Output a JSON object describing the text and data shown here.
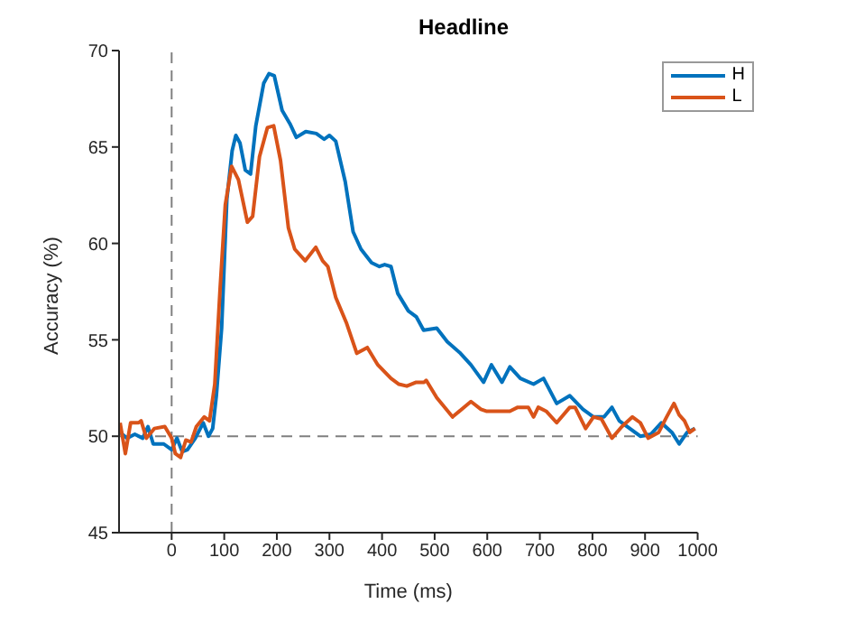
{
  "chart_data": {
    "type": "line",
    "title": "Headline",
    "xlabel": "Time (ms)",
    "ylabel": "Accuracy (%)",
    "xlim": [
      -100,
      1000
    ],
    "xticks": [
      0,
      100,
      200,
      300,
      400,
      500,
      600,
      700,
      800,
      900,
      1000
    ],
    "ylim": [
      45,
      70
    ],
    "yticks": [
      45,
      50,
      55,
      60,
      65,
      70
    ],
    "grid": false,
    "legend": "top right",
    "line_style": "solid",
    "marker": "none",
    "ref_lines": [
      {
        "axis": "x",
        "value": 0,
        "color": "#808080",
        "line_style": "dashed"
      },
      {
        "axis": "y",
        "value": 50,
        "color": "#808080",
        "line_style": "dashed"
      }
    ],
    "series": [
      {
        "name": "H",
        "color": "#0072bd",
        "x": [
          -98,
          -85,
          -70,
          -55,
          -45,
          -35,
          -15,
          0,
          10,
          20,
          30,
          45,
          60,
          70,
          78,
          85,
          95,
          105,
          115,
          122,
          130,
          140,
          150,
          160,
          175,
          185,
          195,
          210,
          225,
          237,
          255,
          275,
          290,
          300,
          312,
          330,
          345,
          360,
          380,
          395,
          405,
          417,
          430,
          450,
          465,
          479,
          504,
          524,
          549,
          569,
          593,
          608,
          628,
          643,
          663,
          688,
          707,
          732,
          757,
          782,
          802,
          822,
          837,
          851,
          871,
          891,
          911,
          931,
          951,
          965,
          980,
          995
        ],
        "values": [
          50.2,
          49.9,
          50.1,
          49.9,
          50.5,
          49.6,
          49.6,
          49.3,
          49.9,
          49.2,
          49.3,
          49.9,
          50.7,
          50.0,
          50.4,
          52.1,
          55.6,
          62.3,
          64.8,
          65.6,
          65.2,
          63.8,
          63.6,
          66.1,
          68.3,
          68.8,
          68.7,
          66.9,
          66.2,
          65.5,
          65.8,
          65.7,
          65.4,
          65.6,
          65.3,
          63.2,
          60.6,
          59.7,
          59.0,
          58.8,
          58.9,
          58.8,
          57.4,
          56.5,
          56.2,
          55.5,
          55.6,
          54.9,
          54.3,
          53.7,
          52.8,
          53.7,
          52.8,
          53.6,
          53.0,
          52.7,
          53.0,
          51.7,
          52.1,
          51.4,
          51.0,
          51.0,
          51.5,
          50.8,
          50.4,
          50.0,
          50.1,
          50.7,
          50.2,
          49.6,
          50.2,
          50.4
        ]
      },
      {
        "name": "L",
        "color": "#d95319",
        "x": [
          -98,
          -88,
          -78,
          -63,
          -58,
          -48,
          -33,
          -13,
          0,
          7,
          17,
          27,
          37,
          47,
          62,
          72,
          82,
          92,
          102,
          114,
          127,
          144,
          154,
          167,
          182,
          194,
          207,
          222,
          234,
          254,
          274,
          287,
          297,
          312,
          332,
          352,
          372,
          392,
          417,
          432,
          447,
          465,
          480,
          484,
          504,
          534,
          569,
          588,
          598,
          643,
          658,
          678,
          688,
          697,
          712,
          732,
          757,
          767,
          787,
          802,
          817,
          837,
          856,
          876,
          891,
          906,
          926,
          941,
          955,
          965,
          975,
          985,
          995
        ],
        "values": [
          50.7,
          49.1,
          50.7,
          50.7,
          50.8,
          49.9,
          50.4,
          50.5,
          49.9,
          49.1,
          48.9,
          49.8,
          49.7,
          50.5,
          51.0,
          50.8,
          52.7,
          57.6,
          62.0,
          64.0,
          63.3,
          61.1,
          61.4,
          64.5,
          66.0,
          66.1,
          64.3,
          60.8,
          59.7,
          59.1,
          59.8,
          59.1,
          58.8,
          57.2,
          55.9,
          54.3,
          54.6,
          53.7,
          53.0,
          52.7,
          52.6,
          52.8,
          52.8,
          52.9,
          52.0,
          51.0,
          51.8,
          51.4,
          51.3,
          51.3,
          51.5,
          51.5,
          51.0,
          51.5,
          51.3,
          50.7,
          51.5,
          51.5,
          50.4,
          51.0,
          50.9,
          49.9,
          50.5,
          51.0,
          50.7,
          49.9,
          50.2,
          51.0,
          51.7,
          51.1,
          50.8,
          50.2,
          50.4
        ]
      }
    ]
  }
}
